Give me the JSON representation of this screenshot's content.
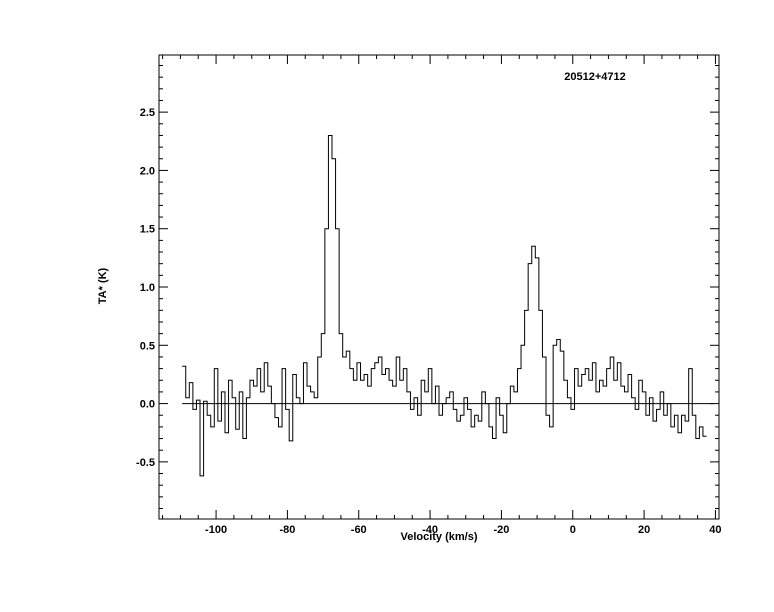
{
  "chart_data": {
    "type": "line",
    "title": "20512+4712",
    "xlabel": "Velocity (km/s)",
    "ylabel": "TA* (K)",
    "xlim": [
      -116,
      41
    ],
    "ylim": [
      -0.99,
      2.99
    ],
    "x_ticks": [
      -100,
      -80,
      -60,
      -40,
      -20,
      0,
      20,
      40
    ],
    "y_ticks": [
      -0.5,
      0.0,
      0.5,
      1.0,
      1.5,
      2.0,
      2.5
    ],
    "x_tick_labels": [
      "-100",
      "-80",
      "-60",
      "-40",
      "-20",
      "0",
      "20",
      "40"
    ],
    "y_tick_labels": [
      "-0.5",
      "0.0",
      "0.5",
      "1.0",
      "1.5",
      "2.0",
      "2.5"
    ],
    "baseline": 0.0,
    "grid": false,
    "legend": "none",
    "step": true,
    "line_color": "#000000",
    "series": [
      {
        "x": [
          -109.0,
          -108.0,
          -107.0,
          -106.0,
          -105.0,
          -104.0,
          -103.0,
          -102.0,
          -101.0,
          -100.0,
          -99.0,
          -98.0,
          -97.0,
          -96.0,
          -95.0,
          -94.0,
          -93.0,
          -92.0,
          -91.0,
          -90.0,
          -89.0,
          -88.0,
          -87.0,
          -86.0,
          -85.0,
          -84.0,
          -83.0,
          -82.0,
          -81.0,
          -80.0,
          -79.0,
          -78.0,
          -77.0,
          -76.0,
          -75.0,
          -74.0,
          -73.0,
          -72.0,
          -71.0,
          -70.0,
          -69.0,
          -68.0,
          -67.0,
          -66.0,
          -65.0,
          -64.0,
          -63.0,
          -62.0,
          -61.0,
          -60.0,
          -59.0,
          -58.0,
          -57.0,
          -56.0,
          -55.0,
          -54.0,
          -53.0,
          -52.0,
          -51.0,
          -50.0,
          -49.0,
          -48.0,
          -47.0,
          -46.0,
          -45.0,
          -44.0,
          -43.0,
          -42.0,
          -41.0,
          -40.0,
          -39.0,
          -38.0,
          -37.0,
          -36.0,
          -35.0,
          -34.0,
          -33.0,
          -32.0,
          -31.0,
          -30.0,
          -29.0,
          -28.0,
          -27.0,
          -26.0,
          -25.0,
          -24.0,
          -23.0,
          -22.0,
          -21.0,
          -20.0,
          -19.0,
          -18.0,
          -17.0,
          -16.0,
          -15.0,
          -14.0,
          -13.0,
          -12.0,
          -11.0,
          -10.0,
          -9.0,
          -8.0,
          -7.0,
          -6.0,
          -5.0,
          -4.0,
          -3.0,
          -2.0,
          -1.0,
          0.0,
          1.0,
          2.0,
          3.0,
          4.0,
          5.0,
          6.0,
          7.0,
          8.0,
          9.0,
          10.0,
          11.0,
          12.0,
          13.0,
          14.0,
          15.0,
          16.0,
          17.0,
          18.0,
          19.0,
          20.0,
          21.0,
          22.0,
          23.0,
          24.0,
          25.0,
          26.0,
          27.0,
          28.0,
          29.0,
          30.0,
          31.0,
          32.0,
          33.0,
          34.0,
          35.0,
          36.0,
          37.0
        ],
        "y": [
          0.32,
          0.05,
          0.18,
          -0.05,
          0.03,
          -0.62,
          0.02,
          -0.1,
          -0.2,
          0.3,
          -0.15,
          0.1,
          -0.25,
          0.2,
          0.05,
          -0.22,
          0.1,
          -0.3,
          0.05,
          0.2,
          0.15,
          0.3,
          0.1,
          0.35,
          0.15,
          0.0,
          -0.12,
          -0.2,
          0.3,
          -0.05,
          -0.32,
          0.25,
          0.05,
          0.0,
          0.35,
          0.15,
          0.1,
          0.05,
          0.4,
          0.6,
          1.5,
          2.3,
          2.1,
          1.5,
          0.6,
          0.4,
          0.45,
          0.3,
          0.2,
          0.35,
          0.2,
          0.25,
          0.15,
          0.3,
          0.35,
          0.4,
          0.25,
          0.3,
          0.2,
          0.15,
          0.4,
          0.2,
          0.3,
          0.1,
          -0.05,
          0.05,
          -0.1,
          0.2,
          0.1,
          0.3,
          0.0,
          0.15,
          -0.1,
          0.0,
          0.05,
          0.1,
          -0.05,
          -0.15,
          -0.1,
          0.05,
          -0.05,
          -0.2,
          -0.1,
          -0.15,
          0.1,
          0.0,
          -0.2,
          -0.3,
          0.05,
          -0.1,
          -0.25,
          0.0,
          0.15,
          0.1,
          0.3,
          0.5,
          0.8,
          1.2,
          1.35,
          1.25,
          0.8,
          0.4,
          -0.1,
          -0.2,
          0.5,
          0.55,
          0.45,
          0.2,
          0.05,
          -0.05,
          0.3,
          0.15,
          0.25,
          0.3,
          0.2,
          0.35,
          0.1,
          0.2,
          0.15,
          0.3,
          0.4,
          0.2,
          0.35,
          0.15,
          0.1,
          0.25,
          0.05,
          -0.05,
          0.2,
          0.1,
          -0.1,
          0.05,
          -0.15,
          -0.05,
          0.1,
          -0.1,
          0.0,
          -0.2,
          -0.1,
          -0.25,
          -0.1,
          -0.15,
          0.3,
          -0.1,
          -0.3,
          -0.2,
          -0.28
        ]
      }
    ]
  }
}
